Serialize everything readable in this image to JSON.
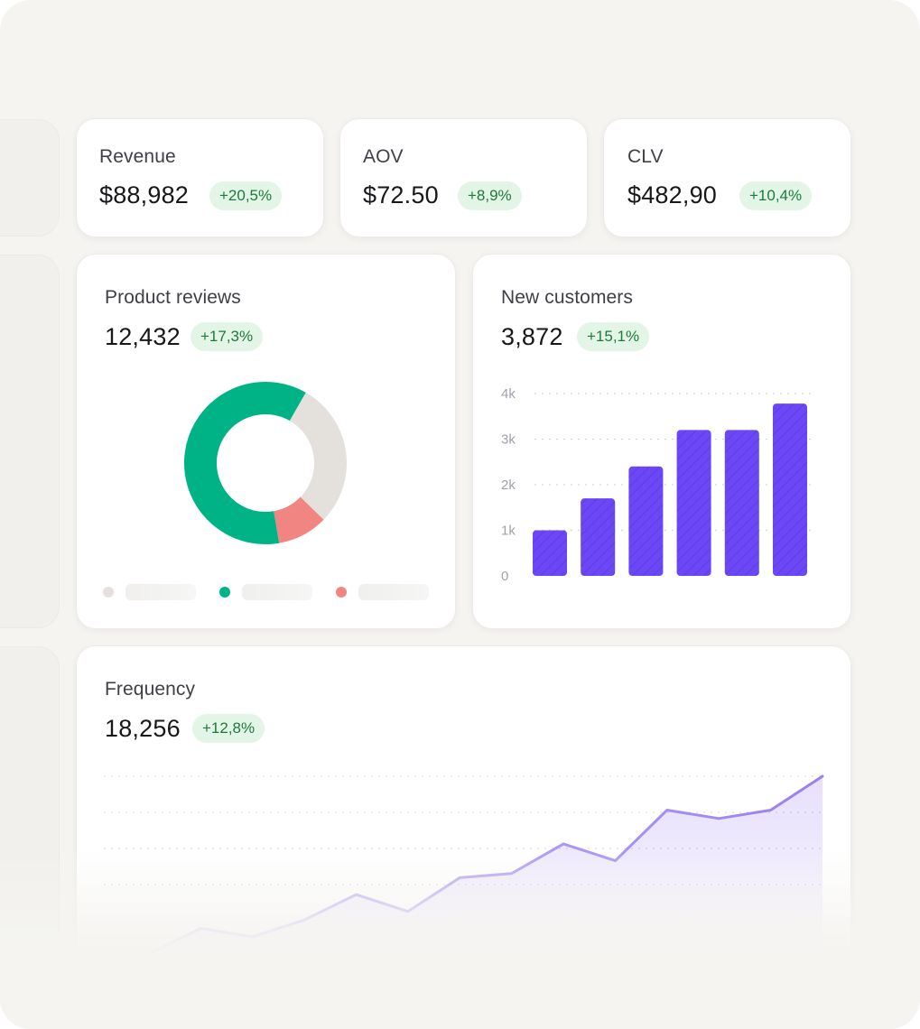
{
  "colors": {
    "accent_purple": "#6b47f5",
    "green": "#00b386",
    "red": "#f08582",
    "neutral": "#e4e1dc",
    "badge_bg": "#e3f5e7",
    "badge_text": "#1e7a3b"
  },
  "kpis": [
    {
      "title": "Revenue",
      "value": "$88,982",
      "change": "+20,5%"
    },
    {
      "title": "AOV",
      "value": "$72.50",
      "change": "+8,9%"
    },
    {
      "title": "CLV",
      "value": "$482,90",
      "change": "+10,4%"
    }
  ],
  "reviews": {
    "title": "Product reviews",
    "value": "12,432",
    "change": "+17,3%"
  },
  "customers": {
    "title": "New customers",
    "value": "3,872",
    "change": "+15,1%"
  },
  "frequency": {
    "title": "Frequency",
    "value": "18,256",
    "change": "+12,8%"
  },
  "chart_data": [
    {
      "type": "pie",
      "segments": [
        {
          "value": 29,
          "color": "#e4e1dc",
          "icon": "neutral-dot"
        },
        {
          "value": 10,
          "color": "#f08582",
          "icon": "red-dot"
        },
        {
          "value": 61,
          "color": "#00b386",
          "icon": "green-dot"
        }
      ],
      "legend_placement": "bottom"
    },
    {
      "type": "bar",
      "values": [
        1000,
        1700,
        2400,
        3200,
        3200,
        3780
      ],
      "color": "#6b47f5",
      "ylim": [
        0,
        4000
      ],
      "yticks": [
        {
          "v": 0,
          "label": "0"
        },
        {
          "v": 1000,
          "label": "1k"
        },
        {
          "v": 2000,
          "label": "2k"
        },
        {
          "v": 3000,
          "label": "3k"
        },
        {
          "v": 4000,
          "label": "4k"
        }
      ],
      "grid": true
    },
    {
      "type": "area",
      "values": [
        1,
        4,
        3,
        5,
        8,
        6,
        10,
        10.5,
        14,
        12,
        18,
        17,
        18,
        22
      ],
      "color": "#a48df0",
      "ylim": [
        0,
        22
      ],
      "grid": true
    }
  ]
}
